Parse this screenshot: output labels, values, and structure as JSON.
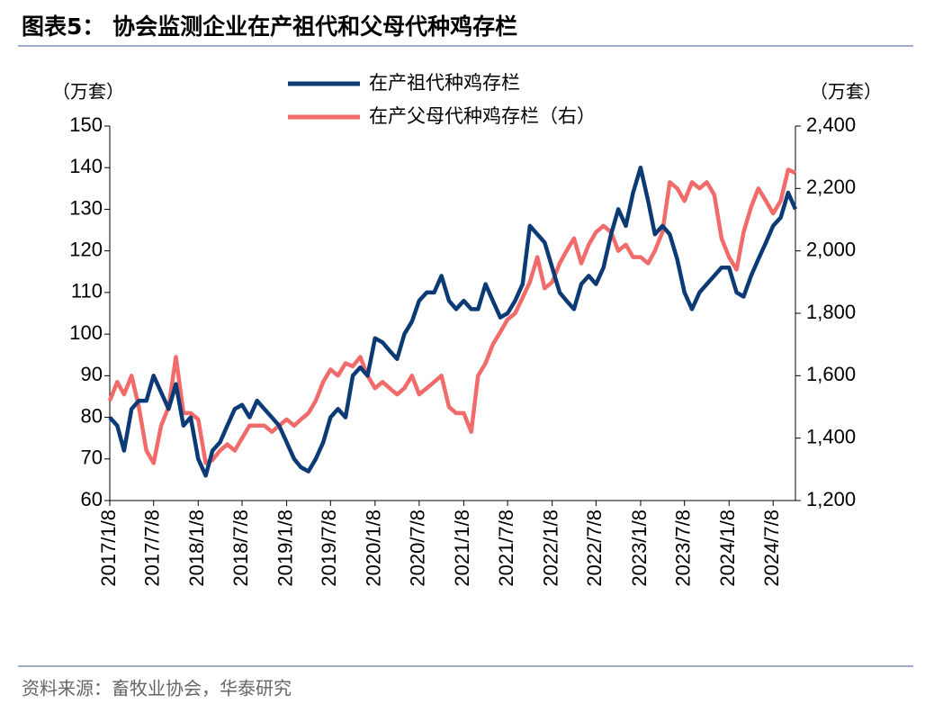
{
  "chart_data": {
    "type": "line",
    "title": "图表5：  协会监测企业在产祖代和父母代种鸡存栏",
    "source": "资料来源：畜牧业协会，华泰研究",
    "y_label": "（万套）",
    "y2_label": "（万套）",
    "x": [
      "2017/1/8",
      "2017/2/8",
      "2017/3/8",
      "2017/4/8",
      "2017/5/8",
      "2017/6/8",
      "2017/7/8",
      "2017/8/8",
      "2017/9/8",
      "2017/10/8",
      "2017/11/8",
      "2017/12/8",
      "2018/1/8",
      "2018/2/8",
      "2018/3/8",
      "2018/4/8",
      "2018/5/8",
      "2018/6/8",
      "2018/7/8",
      "2018/8/8",
      "2018/9/8",
      "2018/10/8",
      "2018/11/8",
      "2018/12/8",
      "2019/1/8",
      "2019/2/8",
      "2019/3/8",
      "2019/4/8",
      "2019/5/8",
      "2019/6/8",
      "2019/7/8",
      "2019/8/8",
      "2019/9/8",
      "2019/10/8",
      "2019/11/8",
      "2019/12/8",
      "2020/1/8",
      "2020/2/8",
      "2020/3/8",
      "2020/4/8",
      "2020/5/8",
      "2020/6/8",
      "2020/7/8",
      "2020/8/8",
      "2020/9/8",
      "2020/10/8",
      "2020/11/8",
      "2020/12/8",
      "2021/1/8",
      "2021/2/8",
      "2021/3/8",
      "2021/4/8",
      "2021/5/8",
      "2021/6/8",
      "2021/7/8",
      "2021/8/8",
      "2021/9/8",
      "2021/10/8",
      "2021/11/8",
      "2021/12/8",
      "2022/1/8",
      "2022/2/8",
      "2022/3/8",
      "2022/4/8",
      "2022/5/8",
      "2022/6/8",
      "2022/7/8",
      "2022/8/8",
      "2022/9/8",
      "2022/10/8",
      "2022/11/8",
      "2022/12/8",
      "2023/1/8",
      "2023/2/8",
      "2023/3/8",
      "2023/4/8",
      "2023/5/8",
      "2023/6/8",
      "2023/7/8",
      "2023/8/8",
      "2023/9/8",
      "2023/10/8",
      "2023/11/8",
      "2023/12/8",
      "2024/1/8",
      "2024/2/8",
      "2024/3/8",
      "2024/4/8",
      "2024/5/8",
      "2024/6/8",
      "2024/7/8",
      "2024/8/8",
      "2024/9/8",
      "2024/10/8"
    ],
    "series": [
      {
        "name": "在产祖代种鸡存栏",
        "color": "#0b3a75",
        "values": [
          80,
          78,
          72,
          82,
          84,
          84,
          90,
          86,
          82,
          88,
          78,
          80,
          70,
          66,
          72,
          74,
          78,
          82,
          83,
          80,
          84,
          82,
          80,
          78,
          74,
          70,
          68,
          67,
          70,
          74,
          80,
          82,
          80,
          90,
          92,
          90,
          99,
          98,
          96,
          94,
          100,
          103,
          108,
          110,
          110,
          114,
          108,
          106,
          108,
          106,
          106,
          112,
          108,
          104,
          105,
          108,
          112,
          126,
          124,
          122,
          116,
          110,
          108,
          106,
          112,
          114,
          112,
          116,
          124,
          130,
          126,
          134,
          140,
          132,
          124,
          126,
          124,
          118,
          110,
          106,
          110,
          112,
          114,
          116,
          116,
          110,
          109,
          114,
          118,
          122,
          126,
          128,
          134,
          130
        ]
      },
      {
        "name": "在产父母代种鸡存栏（右）",
        "color": "#f26b6b",
        "axis": "y2",
        "values": [
          1520,
          1580,
          1540,
          1600,
          1500,
          1360,
          1320,
          1440,
          1500,
          1660,
          1480,
          1480,
          1460,
          1320,
          1330,
          1360,
          1380,
          1360,
          1400,
          1440,
          1440,
          1440,
          1420,
          1440,
          1460,
          1440,
          1460,
          1480,
          1520,
          1580,
          1620,
          1600,
          1640,
          1630,
          1660,
          1600,
          1560,
          1580,
          1560,
          1540,
          1560,
          1600,
          1540,
          1560,
          1580,
          1600,
          1500,
          1480,
          1480,
          1420,
          1600,
          1640,
          1700,
          1740,
          1780,
          1800,
          1850,
          1900,
          1980,
          1880,
          1900,
          1960,
          2000,
          2040,
          1960,
          2020,
          2060,
          2080,
          2060,
          2000,
          2020,
          1980,
          1980,
          1960,
          2000,
          2060,
          2220,
          2200,
          2160,
          2220,
          2200,
          2220,
          2180,
          2040,
          1980,
          1940,
          2060,
          2140,
          2200,
          2160,
          2120,
          2160,
          2260,
          2250
        ]
      }
    ],
    "xlim": [
      "2017/1/8",
      "2024/10/8"
    ],
    "xticks": [
      "2017/1/8",
      "2017/7/8",
      "2018/1/8",
      "2018/7/8",
      "2019/1/8",
      "2019/7/8",
      "2020/1/8",
      "2020/7/8",
      "2021/1/8",
      "2021/7/8",
      "2022/1/8",
      "2022/7/8",
      "2023/1/8",
      "2023/7/8",
      "2024/1/8",
      "2024/7/8"
    ],
    "ylim": [
      60,
      150
    ],
    "yticks": [
      60,
      70,
      80,
      90,
      100,
      110,
      120,
      130,
      140,
      150
    ],
    "y2lim": [
      1200,
      2400
    ],
    "y2ticks": [
      {
        "value": 1200,
        "label": "1,200"
      },
      {
        "value": 1400,
        "label": "1,400"
      },
      {
        "value": 1600,
        "label": "1,600"
      },
      {
        "value": 1800,
        "label": "1,800"
      },
      {
        "value": 2000,
        "label": "2,000"
      },
      {
        "value": 2200,
        "label": "2,200"
      },
      {
        "value": 2400,
        "label": "2,400"
      }
    ]
  }
}
